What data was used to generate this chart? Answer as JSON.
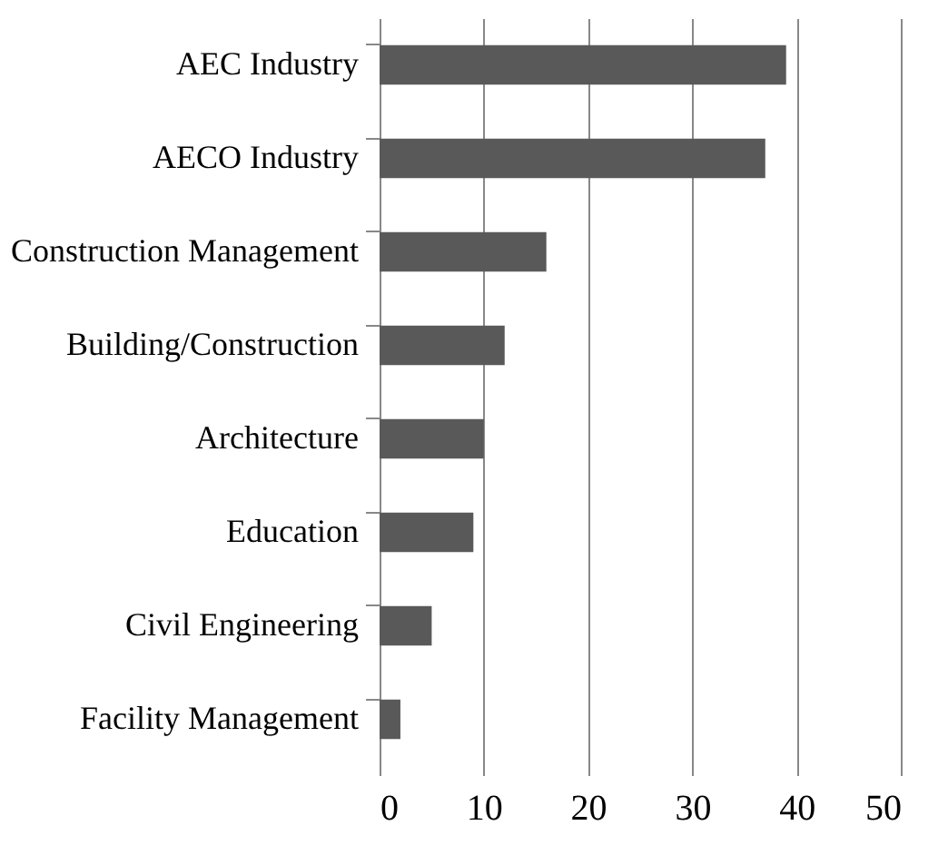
{
  "chart_data": {
    "type": "bar",
    "orientation": "horizontal",
    "categories": [
      "AEC Industry",
      "AECO Industry",
      "Construction Management",
      "Building/Construction",
      "Architecture",
      "Education",
      "Civil Engineering",
      "Facility Management"
    ],
    "values": [
      39,
      37,
      16,
      12,
      10,
      9,
      5,
      2
    ],
    "color": "#595959",
    "xlim": [
      0,
      50
    ],
    "xticks": [
      0,
      10,
      20,
      30,
      40,
      50
    ],
    "grid": "x"
  }
}
